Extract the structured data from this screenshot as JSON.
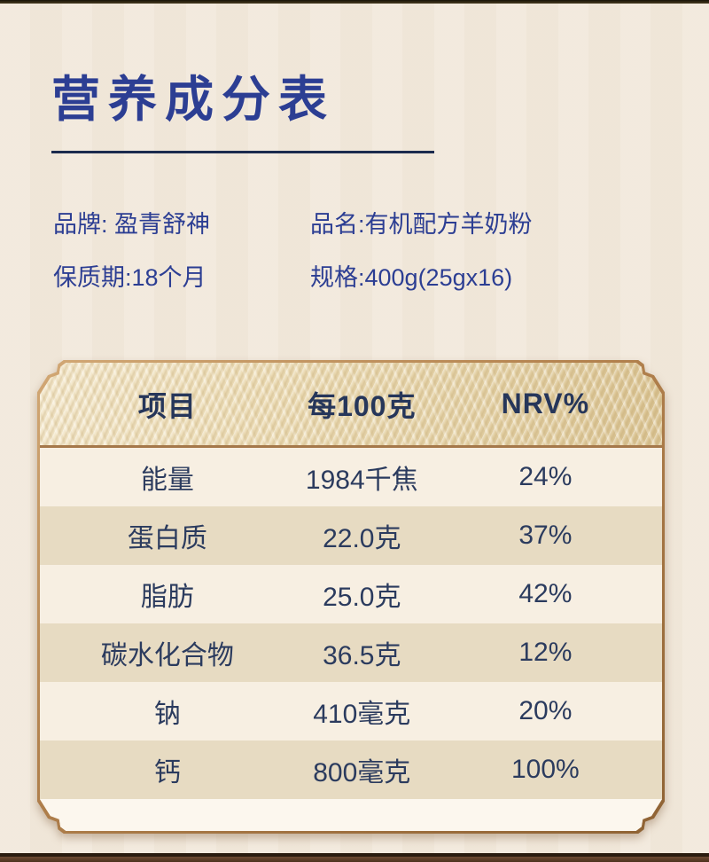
{
  "title": {
    "text": "营养成分表"
  },
  "product_info": {
    "brand": "品牌: 盈青舒神",
    "name": "品名:有机配方羊奶粉",
    "shelf_life": "保质期:18个月",
    "spec": "规格:400g(25gx16)"
  },
  "nutrition_table": {
    "type": "table",
    "headers": [
      "项目",
      "每100克",
      "NRV%"
    ],
    "rows": [
      {
        "item": "能量",
        "per100g": "1984千焦",
        "nrv": "24%"
      },
      {
        "item": "蛋白质",
        "per100g": "22.0克",
        "nrv": "37%"
      },
      {
        "item": "脂肪",
        "per100g": "25.0克",
        "nrv": "42%"
      },
      {
        "item": "碳水化合物",
        "per100g": "36.5克",
        "nrv": "12%"
      },
      {
        "item": "钠",
        "per100g": "410毫克",
        "nrv": "20%"
      },
      {
        "item": "钙",
        "per100g": "800毫克",
        "nrv": "100%"
      }
    ]
  },
  "colors": {
    "page_bg": "#f2e9dc",
    "accent_blue": "#2c3e93",
    "table_text": "#2b3b5e",
    "gold_header": "#e7d5ad",
    "bronze_border": "#aa7a46",
    "row_light": "#f7efe2",
    "row_tan": "#e7dbc2",
    "title_underline": "#1b2b4e"
  }
}
